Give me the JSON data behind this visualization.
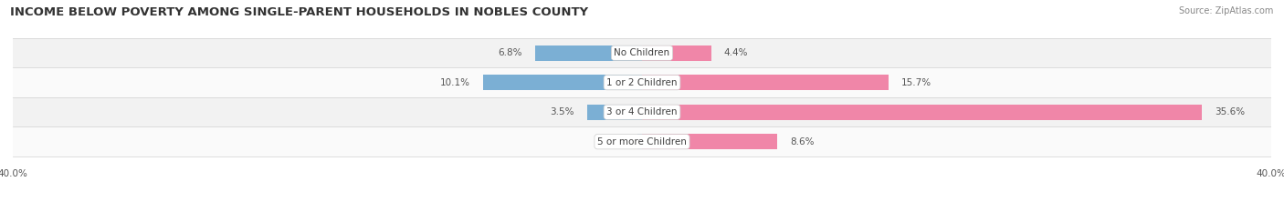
{
  "title": "INCOME BELOW POVERTY AMONG SINGLE-PARENT HOUSEHOLDS IN NOBLES COUNTY",
  "source": "Source: ZipAtlas.com",
  "categories": [
    "No Children",
    "1 or 2 Children",
    "3 or 4 Children",
    "5 or more Children"
  ],
  "single_father": [
    6.8,
    10.1,
    3.5,
    0.0
  ],
  "single_mother": [
    4.4,
    15.7,
    35.6,
    8.6
  ],
  "color_father": "#7bafd4",
  "color_mother": "#f086a8",
  "color_father_light": "#b8d4e8",
  "color_mother_light": "#f4bfcf",
  "axis_max": 40.0,
  "bg_color": "#ffffff",
  "row_bg_even": "#f2f2f2",
  "row_bg_odd": "#fafafa",
  "title_fontsize": 9.5,
  "source_fontsize": 7,
  "label_fontsize": 7.5,
  "value_fontsize": 7.5,
  "tick_fontsize": 7.5,
  "legend_fontsize": 8
}
